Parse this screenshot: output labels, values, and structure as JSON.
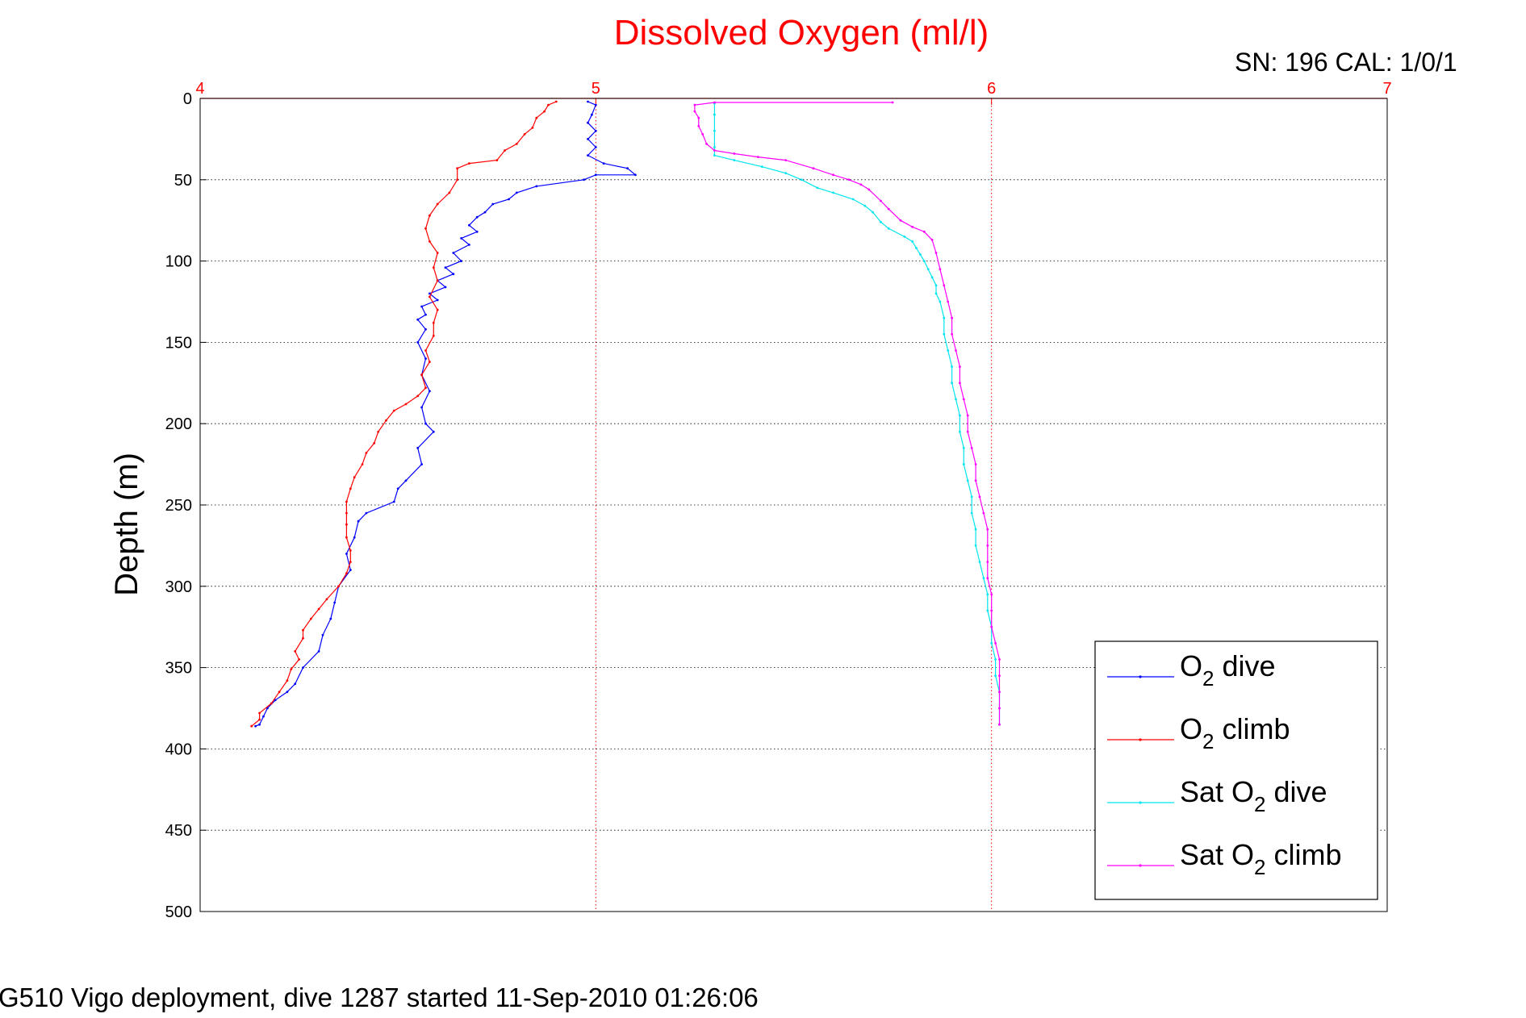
{
  "chart_data": {
    "type": "line",
    "title": "Dissolved Oxygen (ml/l)",
    "ylabel": "Depth (m)",
    "xlim": [
      4,
      7
    ],
    "ylim": [
      0,
      500
    ],
    "y_reversed": true,
    "x_axis_position": "top",
    "grid": true,
    "legend_position": "bottom-right",
    "x_ticks": [
      "4",
      "5",
      "6",
      "7"
    ],
    "y_ticks": [
      "0",
      "50",
      "100",
      "150",
      "200",
      "250",
      "300",
      "350",
      "400",
      "450",
      "500"
    ],
    "legend": {
      "o2_dive": {
        "pre": "O",
        "sub": "2",
        "post": " dive"
      },
      "o2_climb": {
        "pre": "O",
        "sub": "2",
        "post": " climb"
      },
      "sat_dive": {
        "pre": "Sat O",
        "sub": "2",
        "post": " dive"
      },
      "sat_climb": {
        "pre": "Sat O",
        "sub": "2",
        "post": " climb"
      }
    },
    "series": [
      {
        "key": "o2_dive",
        "color": "#0000ff",
        "points": [
          [
            4.98,
            2
          ],
          [
            5.0,
            4
          ],
          [
            4.99,
            10
          ],
          [
            4.98,
            15
          ],
          [
            5.0,
            20
          ],
          [
            4.98,
            25
          ],
          [
            5.0,
            30
          ],
          [
            4.98,
            35
          ],
          [
            5.02,
            40
          ],
          [
            5.08,
            43
          ],
          [
            5.1,
            47
          ],
          [
            5.0,
            47
          ],
          [
            4.97,
            50
          ],
          [
            4.85,
            54
          ],
          [
            4.8,
            58
          ],
          [
            4.78,
            62
          ],
          [
            4.74,
            65
          ],
          [
            4.72,
            70
          ],
          [
            4.7,
            73
          ],
          [
            4.68,
            78
          ],
          [
            4.7,
            82
          ],
          [
            4.66,
            86
          ],
          [
            4.68,
            90
          ],
          [
            4.64,
            95
          ],
          [
            4.66,
            100
          ],
          [
            4.62,
            104
          ],
          [
            4.64,
            108
          ],
          [
            4.6,
            112
          ],
          [
            4.62,
            116
          ],
          [
            4.58,
            120
          ],
          [
            4.6,
            124
          ],
          [
            4.56,
            128
          ],
          [
            4.57,
            133
          ],
          [
            4.55,
            136
          ],
          [
            4.57,
            142
          ],
          [
            4.55,
            150
          ],
          [
            4.57,
            160
          ],
          [
            4.56,
            170
          ],
          [
            4.58,
            180
          ],
          [
            4.56,
            190
          ],
          [
            4.57,
            200
          ],
          [
            4.59,
            205
          ],
          [
            4.55,
            215
          ],
          [
            4.56,
            225
          ],
          [
            4.52,
            235
          ],
          [
            4.5,
            240
          ],
          [
            4.49,
            248
          ],
          [
            4.42,
            255
          ],
          [
            4.4,
            260
          ],
          [
            4.39,
            270
          ],
          [
            4.37,
            280
          ],
          [
            4.38,
            290
          ],
          [
            4.35,
            300
          ],
          [
            4.34,
            310
          ],
          [
            4.33,
            320
          ],
          [
            4.31,
            330
          ],
          [
            4.3,
            340
          ],
          [
            4.26,
            350
          ],
          [
            4.24,
            360
          ],
          [
            4.22,
            365
          ],
          [
            4.19,
            370
          ],
          [
            4.17,
            375
          ],
          [
            4.16,
            380
          ],
          [
            4.15,
            385
          ],
          [
            4.14,
            386
          ]
        ]
      },
      {
        "key": "o2_climb",
        "color": "#ff0000",
        "points": [
          [
            4.13,
            386
          ],
          [
            4.15,
            382
          ],
          [
            4.15,
            378
          ],
          [
            4.18,
            372
          ],
          [
            4.2,
            365
          ],
          [
            4.22,
            358
          ],
          [
            4.23,
            351
          ],
          [
            4.25,
            345
          ],
          [
            4.24,
            340
          ],
          [
            4.26,
            332
          ],
          [
            4.26,
            327
          ],
          [
            4.28,
            320
          ],
          [
            4.3,
            314
          ],
          [
            4.32,
            308
          ],
          [
            4.35,
            300
          ],
          [
            4.37,
            292
          ],
          [
            4.38,
            285
          ],
          [
            4.38,
            278
          ],
          [
            4.37,
            270
          ],
          [
            4.37,
            262
          ],
          [
            4.37,
            255
          ],
          [
            4.37,
            248
          ],
          [
            4.38,
            240
          ],
          [
            4.39,
            233
          ],
          [
            4.41,
            225
          ],
          [
            4.42,
            218
          ],
          [
            4.44,
            212
          ],
          [
            4.45,
            205
          ],
          [
            4.47,
            198
          ],
          [
            4.49,
            192
          ],
          [
            4.52,
            188
          ],
          [
            4.55,
            183
          ],
          [
            4.57,
            178
          ],
          [
            4.56,
            170
          ],
          [
            4.58,
            162
          ],
          [
            4.57,
            155
          ],
          [
            4.59,
            146
          ],
          [
            4.59,
            138
          ],
          [
            4.6,
            130
          ],
          [
            4.58,
            122
          ],
          [
            4.6,
            112
          ],
          [
            4.59,
            104
          ],
          [
            4.6,
            95
          ],
          [
            4.58,
            88
          ],
          [
            4.57,
            80
          ],
          [
            4.58,
            72
          ],
          [
            4.6,
            65
          ],
          [
            4.63,
            58
          ],
          [
            4.65,
            50
          ],
          [
            4.65,
            43
          ],
          [
            4.68,
            40
          ],
          [
            4.75,
            38
          ],
          [
            4.77,
            32
          ],
          [
            4.8,
            28
          ],
          [
            4.82,
            22
          ],
          [
            4.84,
            18
          ],
          [
            4.85,
            12
          ],
          [
            4.87,
            8
          ],
          [
            4.88,
            4
          ],
          [
            4.9,
            2
          ]
        ]
      },
      {
        "key": "sat_dive",
        "color": "#00e5ee",
        "points": [
          [
            5.3,
            3
          ],
          [
            5.3,
            10
          ],
          [
            5.3,
            20
          ],
          [
            5.3,
            30
          ],
          [
            5.3,
            35
          ],
          [
            5.35,
            38
          ],
          [
            5.42,
            42
          ],
          [
            5.48,
            46
          ],
          [
            5.52,
            50
          ],
          [
            5.56,
            55
          ],
          [
            5.6,
            58
          ],
          [
            5.65,
            62
          ],
          [
            5.68,
            66
          ],
          [
            5.7,
            70
          ],
          [
            5.72,
            76
          ],
          [
            5.74,
            80
          ],
          [
            5.78,
            85
          ],
          [
            5.8,
            88
          ],
          [
            5.81,
            92
          ],
          [
            5.82,
            96
          ],
          [
            5.83,
            100
          ],
          [
            5.84,
            105
          ],
          [
            5.85,
            110
          ],
          [
            5.86,
            115
          ],
          [
            5.86,
            120
          ],
          [
            5.87,
            125
          ],
          [
            5.88,
            135
          ],
          [
            5.88,
            145
          ],
          [
            5.89,
            155
          ],
          [
            5.9,
            165
          ],
          [
            5.9,
            175
          ],
          [
            5.91,
            185
          ],
          [
            5.92,
            195
          ],
          [
            5.92,
            205
          ],
          [
            5.93,
            215
          ],
          [
            5.93,
            225
          ],
          [
            5.94,
            235
          ],
          [
            5.95,
            245
          ],
          [
            5.95,
            255
          ],
          [
            5.96,
            265
          ],
          [
            5.96,
            275
          ],
          [
            5.97,
            285
          ],
          [
            5.98,
            295
          ],
          [
            5.99,
            305
          ],
          [
            5.99,
            315
          ],
          [
            6.0,
            325
          ],
          [
            6.0,
            335
          ],
          [
            6.01,
            345
          ],
          [
            6.01,
            355
          ],
          [
            6.02,
            365
          ],
          [
            6.02,
            375
          ],
          [
            6.02,
            385
          ]
        ]
      },
      {
        "key": "sat_climb",
        "color": "#ff00ff",
        "points": [
          [
            6.02,
            385
          ],
          [
            6.02,
            375
          ],
          [
            6.02,
            365
          ],
          [
            6.02,
            355
          ],
          [
            6.02,
            345
          ],
          [
            6.01,
            335
          ],
          [
            6.0,
            325
          ],
          [
            6.0,
            315
          ],
          [
            6.0,
            305
          ],
          [
            5.99,
            295
          ],
          [
            5.99,
            285
          ],
          [
            5.99,
            275
          ],
          [
            5.99,
            265
          ],
          [
            5.98,
            255
          ],
          [
            5.97,
            245
          ],
          [
            5.96,
            235
          ],
          [
            5.96,
            225
          ],
          [
            5.95,
            215
          ],
          [
            5.94,
            205
          ],
          [
            5.94,
            195
          ],
          [
            5.93,
            185
          ],
          [
            5.92,
            175
          ],
          [
            5.92,
            165
          ],
          [
            5.91,
            155
          ],
          [
            5.9,
            145
          ],
          [
            5.9,
            135
          ],
          [
            5.89,
            125
          ],
          [
            5.88,
            115
          ],
          [
            5.87,
            105
          ],
          [
            5.86,
            95
          ],
          [
            5.85,
            87
          ],
          [
            5.83,
            82
          ],
          [
            5.8,
            79
          ],
          [
            5.77,
            75
          ],
          [
            5.74,
            68
          ],
          [
            5.72,
            63
          ],
          [
            5.69,
            56
          ],
          [
            5.67,
            53
          ],
          [
            5.64,
            50
          ],
          [
            5.6,
            47
          ],
          [
            5.55,
            43
          ],
          [
            5.48,
            38
          ],
          [
            5.41,
            36
          ],
          [
            5.35,
            34
          ],
          [
            5.3,
            32
          ],
          [
            5.28,
            28
          ],
          [
            5.27,
            22
          ],
          [
            5.26,
            17
          ],
          [
            5.26,
            12
          ],
          [
            5.25,
            8
          ],
          [
            5.25,
            4
          ],
          [
            5.3,
            2.5
          ],
          [
            5.75,
            2.5
          ]
        ]
      }
    ]
  },
  "annotation_sn": "SN: 196  CAL: 1/0/1",
  "footer": "G510 Vigo deployment, dive 1287 started 11-Sep-2010 01:26:06"
}
